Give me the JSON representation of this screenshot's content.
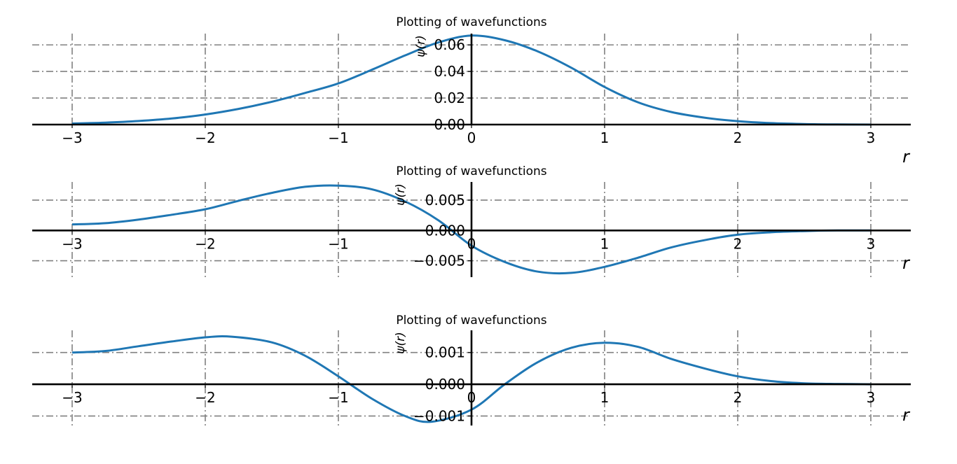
{
  "chart_data": [
    {
      "type": "line",
      "title": "Plotting of wavefunctions",
      "xlabel": "r",
      "ylabel": "ψ(r)",
      "xlim": [
        -3.3,
        3.3
      ],
      "ylim": [
        0.0,
        0.0685
      ],
      "grid": true,
      "x_ticks": [
        -3,
        -2,
        -1,
        0,
        1,
        2,
        3
      ],
      "x_tick_labels": [
        "−3",
        "−2",
        "−1",
        "0",
        "1",
        "2",
        "3"
      ],
      "y_ticks": [
        0.0,
        0.02,
        0.04,
        0.06
      ],
      "y_tick_labels": [
        "0.00",
        "0.02",
        "0.04",
        "0.06"
      ],
      "series": [
        {
          "color": "#1f77b4",
          "x": [
            -3.0,
            -2.75,
            -2.5,
            -2.25,
            -2.0,
            -1.75,
            -1.5,
            -1.25,
            -1.0,
            -0.75,
            -0.5,
            -0.25,
            0.0,
            0.25,
            0.5,
            0.75,
            1.0,
            1.25,
            1.5,
            1.75,
            2.0,
            2.25,
            2.5,
            2.75,
            3.0
          ],
          "y": [
            0.0008,
            0.0015,
            0.0027,
            0.0046,
            0.0076,
            0.0118,
            0.0172,
            0.0238,
            0.031,
            0.0412,
            0.052,
            0.0618,
            0.067,
            0.0635,
            0.055,
            0.0428,
            0.0283,
            0.0168,
            0.0095,
            0.0052,
            0.0026,
            0.0011,
            0.0004,
            0.0001,
            0.0
          ]
        }
      ]
    },
    {
      "type": "line",
      "title": "Plotting of wavefunctions",
      "xlabel": "r",
      "ylabel": "ψ(r)",
      "xlim": [
        -3.3,
        3.3
      ],
      "ylim": [
        -0.0077,
        0.008
      ],
      "grid": true,
      "x_ticks": [
        -3,
        -2,
        -1,
        0,
        1,
        2,
        3
      ],
      "x_tick_labels": [
        "−3",
        "−2",
        "−1",
        "0",
        "1",
        "2",
        "3"
      ],
      "y_ticks": [
        -0.005,
        0.0,
        0.005
      ],
      "y_tick_labels": [
        "−0.005",
        "0.000",
        "0.005"
      ],
      "series": [
        {
          "color": "#1f77b4",
          "x": [
            -3.0,
            -2.75,
            -2.5,
            -2.25,
            -2.0,
            -1.75,
            -1.5,
            -1.25,
            -1.0,
            -0.75,
            -0.5,
            -0.25,
            0.0,
            0.25,
            0.5,
            0.75,
            1.0,
            1.25,
            1.5,
            1.75,
            2.0,
            2.25,
            2.5,
            2.75,
            3.0
          ],
          "y": [
            0.001,
            0.0012,
            0.0018,
            0.0026,
            0.0035,
            0.0049,
            0.0062,
            0.0072,
            0.0074,
            0.0068,
            0.0048,
            0.0017,
            -0.0025,
            -0.0052,
            -0.0068,
            -0.007,
            -0.006,
            -0.0045,
            -0.0028,
            -0.0016,
            -0.0007,
            -0.0003,
            -0.0001,
            0.0,
            0.0
          ]
        }
      ]
    },
    {
      "type": "line",
      "title": "Plotting of wavefunctions",
      "xlabel": "r",
      "ylabel": "ψ(r)",
      "xlim": [
        -3.3,
        3.3
      ],
      "ylim": [
        -0.0013,
        0.0017
      ],
      "grid": true,
      "x_ticks": [
        -3,
        -2,
        -1,
        0,
        1,
        2,
        3
      ],
      "x_tick_labels": [
        "−3",
        "−2",
        "−1",
        "0",
        "1",
        "2",
        "3"
      ],
      "y_ticks": [
        -0.001,
        0.0,
        0.001
      ],
      "y_tick_labels": [
        "−0.001",
        "0.000",
        "0.001"
      ],
      "series": [
        {
          "color": "#1f77b4",
          "x": [
            -3.0,
            -2.75,
            -2.5,
            -2.25,
            -2.0,
            -1.8,
            -1.5,
            -1.25,
            -1.0,
            -0.75,
            -0.5,
            -0.3,
            0.0,
            0.25,
            0.5,
            0.75,
            1.0,
            1.25,
            1.5,
            1.75,
            2.0,
            2.25,
            2.5,
            2.75,
            3.0
          ],
          "y": [
            0.001,
            0.00105,
            0.0012,
            0.00135,
            0.00148,
            0.0015,
            0.00132,
            0.0009,
            0.00025,
            -0.00045,
            -0.001,
            -0.00118,
            -0.0008,
            0.0,
            0.0007,
            0.00115,
            0.00131,
            0.00118,
            0.0008,
            0.0005,
            0.00025,
            0.0001,
            3e-05,
            1e-05,
            0.0
          ]
        }
      ]
    }
  ]
}
